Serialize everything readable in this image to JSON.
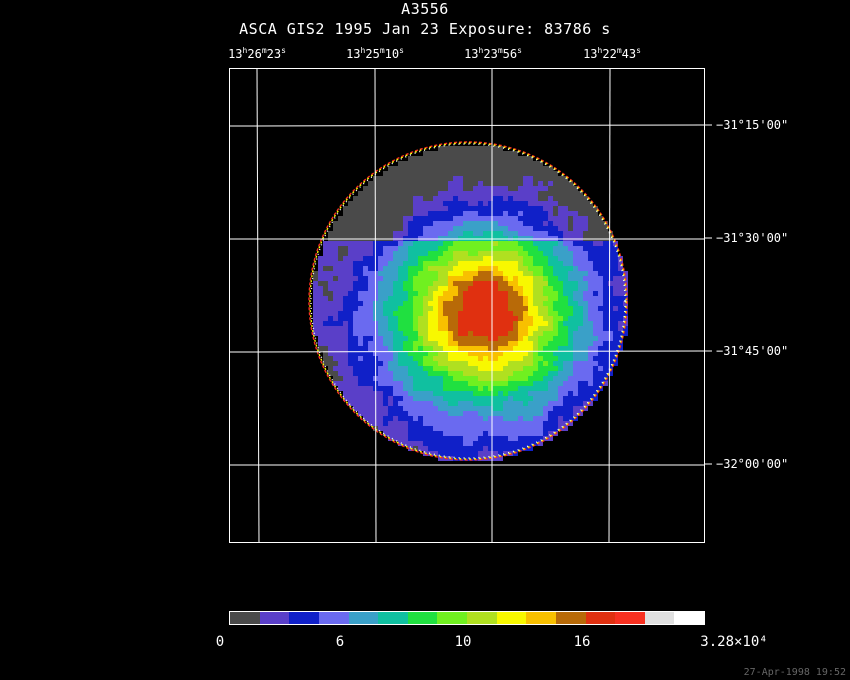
{
  "header": {
    "object_name": "A3556",
    "observation_line": "ASCA GIS2   1995 Jan 23    Exposure: 83786 s"
  },
  "ra_labels": [
    {
      "h": "13",
      "m": "26",
      "s": "23"
    },
    {
      "h": "13",
      "m": "25",
      "s": "10"
    },
    {
      "h": "13",
      "m": "23",
      "s": "56"
    },
    {
      "h": "13",
      "m": "22",
      "s": "43"
    }
  ],
  "dec_labels": [
    "−31°15'00\"",
    "−31°30'00\"",
    "−31°45'00\"",
    "−32°00'00\""
  ],
  "colorbar": {
    "colors": [
      "#4a4a4a",
      "#5a3fc8",
      "#1020c8",
      "#6a6af0",
      "#3aa0c8",
      "#10c0a0",
      "#20e040",
      "#70f020",
      "#b0e020",
      "#f8f800",
      "#f8c000",
      "#b86a08",
      "#e03010",
      "#f83020",
      "#e0e0e0",
      "#ffffff"
    ],
    "labels": [
      "0",
      "6",
      "10",
      "16",
      "3.28×10⁴"
    ]
  },
  "image": {
    "palette": [
      "#4a4a4a",
      "#5a3fc8",
      "#1020c8",
      "#6a6af0",
      "#3aa0c8",
      "#10c0a0",
      "#20e040",
      "#70f020",
      "#b0e020",
      "#f8f800",
      "#f8c000",
      "#b86a08",
      "#e03010"
    ],
    "rim_colors": [
      "#f83020",
      "#f8f800",
      "#ffffff"
    ]
  },
  "footer": {
    "timestamp": "27-Apr-1998 19:52"
  }
}
